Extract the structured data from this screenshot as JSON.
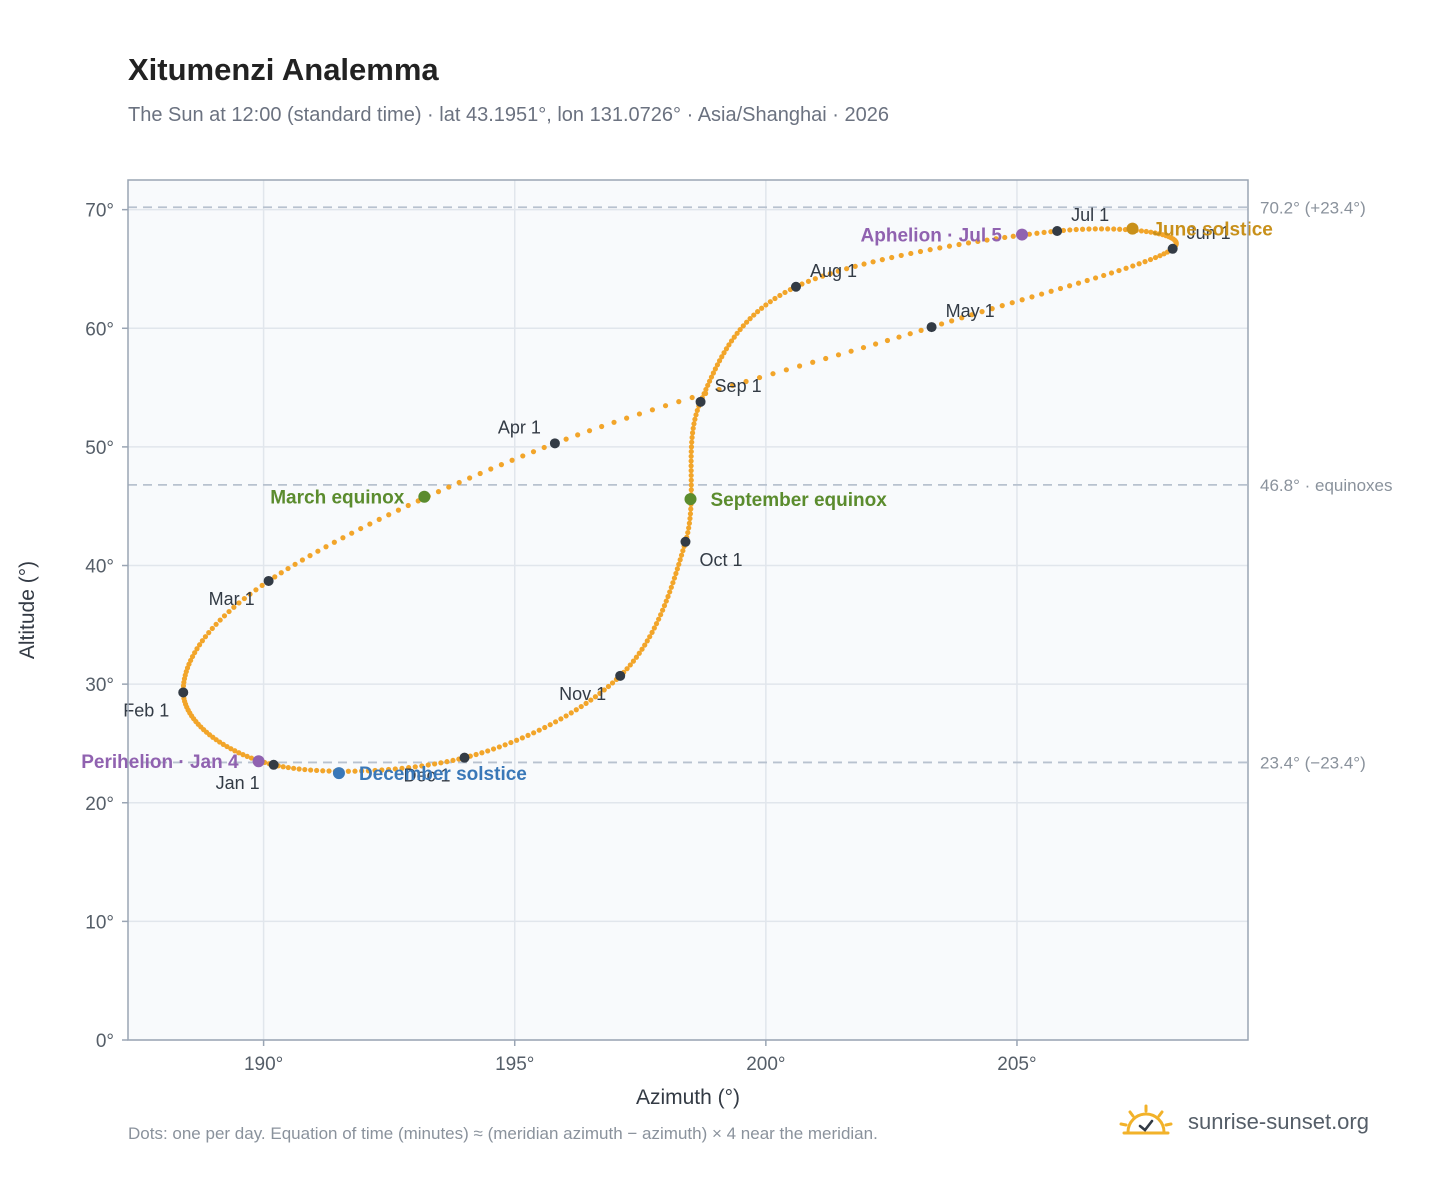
{
  "header": {
    "title": "Xitumenzi Analemma",
    "subtitle": "The Sun at 12:00 (standard time) · lat 43.1951°, lon 131.0726° · Asia/Shanghai · 2026"
  },
  "footer": {
    "note": "Dots: one per day. Equation of time (minutes) ≈ (meridian azimuth − azimuth) × 4 near the meridian.",
    "brand": "sunrise-sunset.org"
  },
  "colors": {
    "curve": "#f2a52a",
    "month_marker": "#333b45",
    "equinox": "#5b8c2e",
    "june_solstice": "#c8901a",
    "december_solstice": "#3a78b8",
    "apsis": "#9062b0",
    "reference_line": "#b8c2cf",
    "plot_background": "#f8fafc"
  },
  "chart_data": {
    "type": "scatter",
    "xlabel": "Azimuth (°)",
    "ylabel": "Altitude (°)",
    "xlim": [
      187.3,
      209.6
    ],
    "ylim": [
      0,
      72.5
    ],
    "xticks": [
      190,
      195,
      200,
      205
    ],
    "xtick_labels": [
      "190°",
      "195°",
      "200°",
      "205°"
    ],
    "yticks": [
      0,
      10,
      20,
      30,
      40,
      50,
      60,
      70
    ],
    "ytick_labels": [
      "0°",
      "10°",
      "20°",
      "30°",
      "40°",
      "50°",
      "60°",
      "70°"
    ],
    "grid": true,
    "reference_lines": [
      {
        "y": 70.2,
        "label": "70.2° (+23.4°)"
      },
      {
        "y": 46.8,
        "label": "46.8° · equinoxes"
      },
      {
        "y": 23.4,
        "label": "23.4° (−23.4°)"
      }
    ],
    "monthly_points": [
      {
        "label": "Jan 1",
        "x": 190.2,
        "y": 23.2,
        "anchor": "below-left"
      },
      {
        "label": "Feb 1",
        "x": 188.4,
        "y": 29.3,
        "anchor": "below-left"
      },
      {
        "label": "Mar 1",
        "x": 190.1,
        "y": 38.7,
        "anchor": "below-left"
      },
      {
        "label": "Apr 1",
        "x": 195.8,
        "y": 50.3,
        "anchor": "above-left"
      },
      {
        "label": "May 1",
        "x": 203.3,
        "y": 60.1,
        "anchor": "above-right"
      },
      {
        "label": "Jun 1",
        "x": 208.1,
        "y": 66.7,
        "anchor": "above-right"
      },
      {
        "label": "Jul 1",
        "x": 205.8,
        "y": 68.2,
        "anchor": "above-right"
      },
      {
        "label": "Aug 1",
        "x": 200.6,
        "y": 63.5,
        "anchor": "above-right"
      },
      {
        "label": "Sep 1",
        "x": 198.7,
        "y": 53.8,
        "anchor": "above-right"
      },
      {
        "label": "Oct 1",
        "x": 198.4,
        "y": 42.0,
        "anchor": "below-right"
      },
      {
        "label": "Nov 1",
        "x": 197.1,
        "y": 30.7,
        "anchor": "below-left"
      },
      {
        "label": "Dec 1",
        "x": 194.0,
        "y": 23.8,
        "anchor": "below-left"
      }
    ],
    "events": [
      {
        "label": "March equinox",
        "x": 193.2,
        "y": 45.8,
        "kind": "equinox",
        "side": "left"
      },
      {
        "label": "September equinox",
        "x": 198.5,
        "y": 45.6,
        "kind": "equinox",
        "side": "right"
      },
      {
        "label": "June solstice",
        "x": 207.3,
        "y": 68.4,
        "kind": "june_solstice",
        "side": "right"
      },
      {
        "label": "December solstice",
        "x": 191.5,
        "y": 22.5,
        "kind": "december_solstice",
        "side": "right"
      },
      {
        "label": "Perihelion · Jan 4",
        "x": 189.9,
        "y": 23.5,
        "kind": "apsis",
        "side": "left"
      },
      {
        "label": "Aphelion · Jul 5",
        "x": 205.1,
        "y": 67.9,
        "kind": "apsis",
        "side": "left"
      }
    ]
  }
}
